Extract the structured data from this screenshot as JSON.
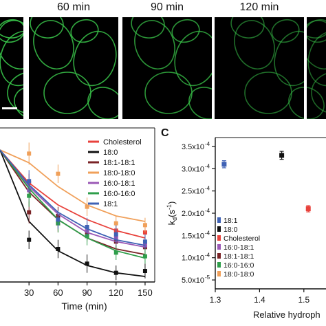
{
  "microscopy": {
    "panels": [
      {
        "label": "",
        "brightness": 0.9
      },
      {
        "label": "60 min",
        "brightness": 0.85
      },
      {
        "label": "90 min",
        "brightness": 0.75
      },
      {
        "label": "120 min",
        "brightness": 0.55
      },
      {
        "label": "",
        "brightness": 0.5
      }
    ],
    "cell_color": "#39c64a"
  },
  "panel_c_letter": "C",
  "chart_data": [
    {
      "type": "scatter",
      "title": "",
      "xlabel": "Time (min)",
      "ylabel": "",
      "xlim": [
        0,
        160
      ],
      "ylim": [
        0.28,
        1.12
      ],
      "x_ticks": [
        30,
        60,
        90,
        120,
        150
      ],
      "legend": "top-right",
      "series": [
        {
          "name": "Cholesterol",
          "color": "#e8423c",
          "curve": [
            [
              0,
              1.0
            ],
            [
              30,
              0.82
            ],
            [
              60,
              0.7
            ],
            [
              90,
              0.62
            ],
            [
              120,
              0.56
            ],
            [
              150,
              0.52
            ]
          ],
          "x": [
            30,
            60,
            90,
            120,
            150
          ],
          "y": [
            0.82,
            0.6,
            0.56,
            0.56,
            0.55
          ],
          "err": [
            0.05,
            0.05,
            0.05,
            0.04,
            0.04
          ]
        },
        {
          "name": "18:0",
          "color": "#111111",
          "curve": [
            [
              0,
              1.0
            ],
            [
              30,
              0.61
            ],
            [
              60,
              0.45
            ],
            [
              90,
              0.37
            ],
            [
              120,
              0.33
            ],
            [
              150,
              0.31
            ]
          ],
          "x": [
            30,
            60,
            90,
            120,
            150
          ],
          "y": [
            0.51,
            0.46,
            0.38,
            0.33,
            0.34
          ],
          "err": [
            0.05,
            0.05,
            0.05,
            0.04,
            0.04
          ]
        },
        {
          "name": "18:1-18:1",
          "color": "#7a2326",
          "curve": [
            [
              0,
              1.0
            ],
            [
              30,
              0.77
            ],
            [
              60,
              0.62
            ],
            [
              90,
              0.52
            ],
            [
              120,
              0.46
            ],
            [
              150,
              0.43
            ]
          ],
          "x": [
            30,
            60,
            90,
            120,
            150
          ],
          "y": [
            0.66,
            0.64,
            0.55,
            0.5,
            0.47
          ],
          "err": [
            0.06,
            0.05,
            0.05,
            0.05,
            0.04
          ]
        },
        {
          "name": "18:0-18:0",
          "color": "#f0a05a",
          "curve": [
            [
              0,
              1.0
            ],
            [
              30,
              0.93
            ],
            [
              60,
              0.8
            ],
            [
              90,
              0.7
            ],
            [
              120,
              0.64
            ],
            [
              150,
              0.61
            ]
          ],
          "x": [
            30,
            60,
            90,
            120,
            150
          ],
          "y": [
            0.98,
            0.87,
            0.69,
            0.6,
            0.59
          ],
          "err": [
            0.06,
            0.05,
            0.05,
            0.04,
            0.04
          ]
        },
        {
          "name": "16:0-18:1",
          "color": "#9b59b6",
          "curve": [
            [
              0,
              1.0
            ],
            [
              30,
              0.8
            ],
            [
              60,
              0.65
            ],
            [
              90,
              0.55
            ],
            [
              120,
              0.5
            ],
            [
              150,
              0.47
            ]
          ],
          "x": [
            30,
            60,
            90,
            120,
            150
          ],
          "y": [
            0.78,
            0.61,
            0.56,
            0.52,
            0.48
          ],
          "err": [
            0.06,
            0.05,
            0.05,
            0.05,
            0.04
          ]
        },
        {
          "name": "16:0-16:0",
          "color": "#2e9e4a",
          "curve": [
            [
              0,
              1.0
            ],
            [
              30,
              0.79
            ],
            [
              60,
              0.62
            ],
            [
              90,
              0.52
            ],
            [
              120,
              0.45
            ],
            [
              150,
              0.41
            ]
          ],
          "x": [
            30,
            60,
            90,
            120,
            150
          ],
          "y": [
            0.75,
            0.6,
            0.53,
            0.44,
            0.42
          ],
          "err": [
            0.06,
            0.05,
            0.05,
            0.04,
            0.04
          ]
        },
        {
          "name": "18:1",
          "color": "#3f62b5",
          "curve": [
            [
              0,
              1.0
            ],
            [
              30,
              0.81
            ],
            [
              60,
              0.66
            ],
            [
              90,
              0.57
            ],
            [
              120,
              0.51
            ],
            [
              150,
              0.48
            ]
          ],
          "x": [
            30,
            60,
            90,
            120,
            150
          ],
          "y": [
            0.83,
            0.62,
            0.58,
            0.54,
            0.5
          ],
          "err": [
            0.06,
            0.05,
            0.05,
            0.05,
            0.04
          ]
        }
      ]
    },
    {
      "type": "scatter",
      "title": "",
      "xlabel": "Relative hydroph",
      "ylabel_main": "k",
      "ylabel_sub": "d",
      "ylabel_rest": "(s",
      "ylabel_sup": "-1",
      "ylabel_close": ")",
      "xlim": [
        1.3,
        1.55
      ],
      "x_ticks": [
        1.3,
        1.4,
        1.5
      ],
      "ylim": [
        3e-05,
        0.00037
      ],
      "y_ticks": [
        {
          "value": 5e-05,
          "mantissa": "5.0x10",
          "exp": "-5"
        },
        {
          "value": 0.0001,
          "mantissa": "1.0x10",
          "exp": "-4"
        },
        {
          "value": 0.00015,
          "mantissa": "1.5x10",
          "exp": "-4"
        },
        {
          "value": 0.0002,
          "mantissa": "2.0x10",
          "exp": "-4"
        },
        {
          "value": 0.00025,
          "mantissa": "2.5x10",
          "exp": "-4"
        },
        {
          "value": 0.0003,
          "mantissa": "3.0x10",
          "exp": "-4"
        },
        {
          "value": 0.00035,
          "mantissa": "3.5x10",
          "exp": "-4"
        }
      ],
      "legend": "bottom-left",
      "legend_entries": [
        {
          "name": "18:1",
          "color": "#3f62b5"
        },
        {
          "name": "18:0",
          "color": "#111111"
        },
        {
          "name": "Cholesterol",
          "color": "#e8423c"
        },
        {
          "name": "16:0-18:1",
          "color": "#9b59b6"
        },
        {
          "name": "18:1-18:1",
          "color": "#7a2326"
        },
        {
          "name": "16:0-16:0",
          "color": "#2e9e4a"
        },
        {
          "name": "18:0-18:0",
          "color": "#f0a05a"
        }
      ],
      "points": [
        {
          "series": "18:1",
          "x": 1.32,
          "y": 0.00031,
          "err": 8e-06,
          "color": "#3f62b5"
        },
        {
          "series": "18:0",
          "x": 1.45,
          "y": 0.00033,
          "err": 9e-06,
          "color": "#111111"
        },
        {
          "series": "Cholesterol",
          "x": 1.51,
          "y": 0.00021,
          "err": 7e-06,
          "color": "#e8423c"
        }
      ]
    }
  ]
}
